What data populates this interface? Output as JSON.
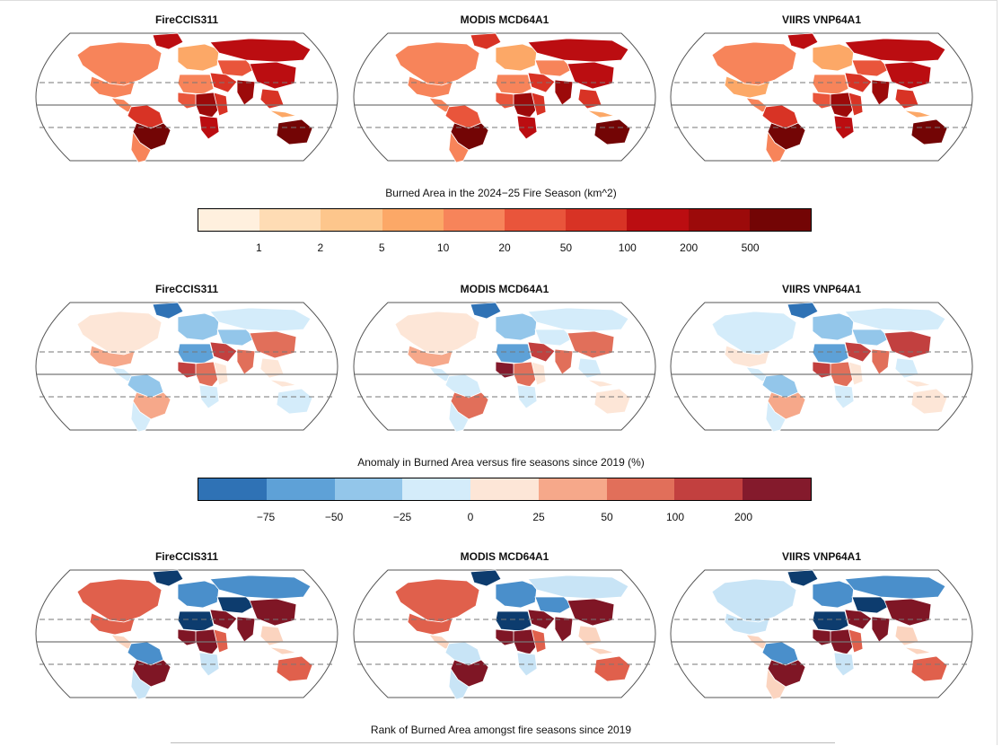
{
  "rows": [
    {
      "maps": [
        {
          "title": "FireCCIS311"
        },
        {
          "title": "MODIS MCD64A1"
        },
        {
          "title": "VIIRS VNP64A1"
        }
      ]
    },
    {
      "maps": [
        {
          "title": "FireCCIS311"
        },
        {
          "title": "MODIS MCD64A1"
        },
        {
          "title": "VIIRS VNP64A1"
        }
      ]
    },
    {
      "maps": [
        {
          "title": "FireCCIS311"
        },
        {
          "title": "MODIS MCD64A1"
        },
        {
          "title": "VIIRS VNP64A1"
        }
      ]
    }
  ],
  "legends": {
    "burned_area": {
      "title": "Burned Area in the 2024−25 Fire Season (km^2)",
      "colors": [
        "#fff0de",
        "#fedcb4",
        "#fdc68c",
        "#fca867",
        "#f7845a",
        "#e9553b",
        "#d83325",
        "#bb0d11",
        "#9c0a0a",
        "#730505"
      ],
      "ticks": [
        "1",
        "2",
        "5",
        "10",
        "20",
        "50",
        "100",
        "200",
        "500"
      ]
    },
    "anomaly": {
      "title": "Anomaly in Burned Area versus fire seasons since 2019 (%)",
      "colors": [
        "#2f72b5",
        "#5ea1d7",
        "#93c6ea",
        "#d4ecfa",
        "#fde6d7",
        "#f6a88a",
        "#e16f5a",
        "#c2403f",
        "#841a2c"
      ],
      "ticks": [
        "−75",
        "−50",
        "−25",
        "0",
        "25",
        "50",
        "100",
        "200"
      ]
    },
    "rank": {
      "title": "Rank of Burned Area amongst fire seasons since 2019"
    }
  },
  "palettes": {
    "burned": [
      "#fff0de",
      "#fedcb4",
      "#fdc68c",
      "#fca867",
      "#f7845a",
      "#e9553b",
      "#d83325",
      "#bb0d11",
      "#9c0a0a",
      "#730505"
    ],
    "anomaly": [
      "#2f72b5",
      "#5ea1d7",
      "#93c6ea",
      "#d4ecfa",
      "#fde6d7",
      "#f6a88a",
      "#e16f5a",
      "#c2403f",
      "#841a2c"
    ],
    "rank": [
      "#0d3c6e",
      "#4a8fcb",
      "#c8e4f6",
      "#fbd4bf",
      "#e0604c",
      "#7f1625"
    ]
  }
}
